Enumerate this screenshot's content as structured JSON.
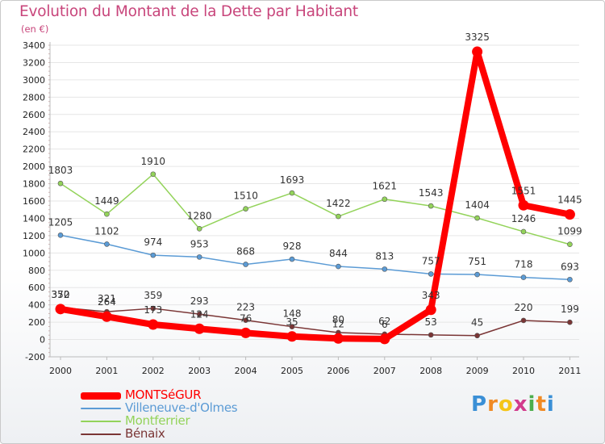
{
  "header": {
    "title": "Evolution du Montant de la Dette par Habitant",
    "subtitle": "(en €)"
  },
  "chart_data": {
    "type": "line",
    "title": "Evolution du Montant de la Dette par Habitant",
    "subtitle": "(en €)",
    "xlabel": "",
    "ylabel": "",
    "categories": [
      "2000",
      "2001",
      "2002",
      "2003",
      "2004",
      "2005",
      "2006",
      "2007",
      "2008",
      "2009",
      "2010",
      "2011"
    ],
    "ylim": [
      -200,
      3400
    ],
    "yticks": [
      -200,
      0,
      200,
      400,
      600,
      800,
      1000,
      1200,
      1400,
      1600,
      1800,
      2000,
      2200,
      2400,
      2600,
      2800,
      3000,
      3200,
      3400
    ],
    "grid": true,
    "legend_position": "bottom-left",
    "series": [
      {
        "name": "MONTSéGUR",
        "color": "#ff0000",
        "emphasis": true,
        "values": [
          352,
          264,
          173,
          124,
          76,
          35,
          12,
          6,
          343,
          3325,
          1551,
          1445
        ]
      },
      {
        "name": "Villeneuve-d'Olmes",
        "color": "#5b9bd5",
        "values": [
          1205,
          1102,
          974,
          953,
          868,
          928,
          844,
          813,
          757,
          751,
          718,
          693
        ]
      },
      {
        "name": "Montferrier",
        "color": "#93d35a",
        "values": [
          1803,
          1449,
          1910,
          1280,
          1510,
          1693,
          1422,
          1621,
          1543,
          1404,
          1246,
          1099
        ]
      },
      {
        "name": "Bénaix",
        "color": "#7a3535",
        "values": [
          370,
          321,
          359,
          293,
          223,
          148,
          80,
          62,
          53,
          45,
          220,
          199
        ]
      }
    ]
  },
  "brand": {
    "letters": [
      "P",
      "r",
      "o",
      "x",
      "i",
      "t",
      "i"
    ],
    "colors": [
      "#3a8fd6",
      "#f08a24",
      "#f5c518",
      "#d23b8c",
      "#4cae4c",
      "#f08a24",
      "#3a8fd6"
    ]
  }
}
